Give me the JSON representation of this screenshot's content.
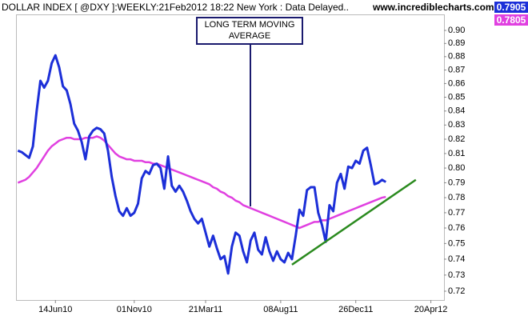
{
  "chart_data": {
    "type": "line",
    "title": "DOLLAR INDEX [ @DXY ]:WEEKLY:21Feb2012 18:22 New York : Data Delayed..",
    "source": "www.incrediblecharts.com",
    "annotation": [
      "LONG TERM MOVING",
      "AVERAGE"
    ],
    "log_scale": true,
    "categories": [
      null,
      null,
      null,
      null,
      null,
      null,
      null,
      null,
      null,
      null,
      "14Jun10",
      null,
      null,
      null,
      null,
      null,
      null,
      null,
      null,
      null,
      null,
      null,
      null,
      null,
      null,
      null,
      null,
      null,
      null,
      null,
      null,
      "01Nov10",
      null,
      null,
      null,
      null,
      null,
      null,
      null,
      null,
      null,
      null,
      null,
      null,
      null,
      null,
      null,
      null,
      null,
      null,
      "21Mar11",
      null,
      null,
      null,
      null,
      null,
      null,
      null,
      null,
      null,
      null,
      null,
      null,
      null,
      null,
      null,
      null,
      null,
      null,
      null,
      "08Aug11",
      null,
      null,
      null,
      null,
      null,
      null,
      null,
      null,
      null,
      null,
      null,
      null,
      null,
      null,
      null,
      null,
      null,
      null,
      null,
      "26Dec11",
      null,
      null,
      null,
      null,
      null,
      null,
      null,
      null,
      null,
      null,
      null,
      null,
      null,
      null,
      null,
      null,
      null,
      null,
      null,
      "20Apr12",
      null,
      null,
      null
    ],
    "series": [
      {
        "color": "#1c2fd8",
        "values": [
          0.812,
          0.811,
          0.809,
          0.807,
          0.815,
          0.84,
          0.862,
          0.857,
          0.862,
          0.875,
          0.881,
          0.872,
          0.858,
          0.855,
          0.845,
          0.831,
          0.826,
          0.818,
          0.806,
          0.822,
          0.826,
          0.828,
          0.827,
          0.824,
          0.812,
          0.794,
          0.781,
          0.771,
          0.768,
          0.773,
          0.768,
          0.77,
          0.776,
          0.793,
          0.798,
          0.796,
          0.802,
          0.803,
          0.8,
          0.786,
          0.808,
          0.788,
          0.784,
          0.788,
          0.784,
          0.778,
          0.771,
          0.766,
          0.763,
          0.766,
          0.757,
          0.748,
          0.755,
          0.747,
          0.74,
          0.742,
          0.731,
          0.748,
          0.757,
          0.755,
          0.745,
          0.738,
          0.752,
          0.757,
          0.746,
          0.743,
          0.754,
          0.745,
          0.739,
          0.745,
          0.74,
          0.738,
          0.744,
          0.74,
          0.755,
          0.772,
          0.768,
          0.785,
          0.787,
          0.787,
          0.77,
          0.762,
          0.751,
          0.775,
          0.771,
          0.79,
          0.796,
          0.786,
          0.801,
          0.8,
          0.805,
          0.803,
          0.812,
          0.814,
          0.802,
          0.789,
          0.79,
          0.792,
          0.7905,
          null,
          null,
          null,
          null,
          null,
          null,
          null,
          null,
          null,
          null,
          null,
          null,
          null,
          null,
          null
        ]
      },
      {
        "color": "#e040e0",
        "values": [
          0.79,
          0.791,
          0.792,
          0.794,
          0.797,
          0.8,
          0.804,
          0.808,
          0.812,
          0.815,
          0.817,
          0.819,
          0.82,
          0.821,
          0.821,
          0.82,
          0.82,
          0.82,
          0.821,
          0.821,
          0.821,
          0.822,
          0.821,
          0.819,
          0.816,
          0.813,
          0.81,
          0.808,
          0.807,
          0.806,
          0.806,
          0.805,
          0.805,
          0.805,
          0.804,
          0.804,
          0.803,
          0.803,
          0.802,
          0.801,
          0.8,
          0.799,
          0.798,
          0.797,
          0.796,
          0.795,
          0.794,
          0.793,
          0.792,
          0.791,
          0.79,
          0.789,
          0.787,
          0.786,
          0.784,
          0.783,
          0.781,
          0.78,
          0.778,
          0.777,
          0.775,
          0.774,
          0.773,
          0.772,
          0.771,
          0.77,
          0.769,
          0.768,
          0.767,
          0.766,
          0.765,
          0.764,
          0.763,
          0.762,
          0.761,
          0.76,
          0.761,
          0.762,
          0.763,
          0.764,
          0.764,
          0.765,
          0.765,
          0.766,
          0.767,
          0.768,
          0.769,
          0.77,
          0.771,
          0.772,
          0.773,
          0.774,
          0.775,
          0.776,
          0.777,
          0.778,
          0.779,
          0.78,
          0.7805,
          null,
          null,
          null,
          null,
          null,
          null,
          null,
          null,
          null,
          null,
          null,
          null,
          null,
          null,
          null
        ]
      }
    ],
    "trendline": {
      "color": "#2a8a1e",
      "x": [
        73,
        106
      ],
      "values": [
        0.7365,
        0.792
      ]
    },
    "ylim": [
      0.7146,
      0.9124
    ],
    "yticks": [
      0.72,
      0.73,
      0.74,
      0.75,
      0.76,
      0.77,
      0.78,
      0.79,
      {
        "value": 0.8,
        "label": "0.80"
      },
      0.81,
      0.82,
      0.83,
      0.84,
      0.85,
      0.86,
      0.87,
      0.88,
      0.89,
      {
        "value": 0.9,
        "label": "0.90"
      }
    ]
  }
}
